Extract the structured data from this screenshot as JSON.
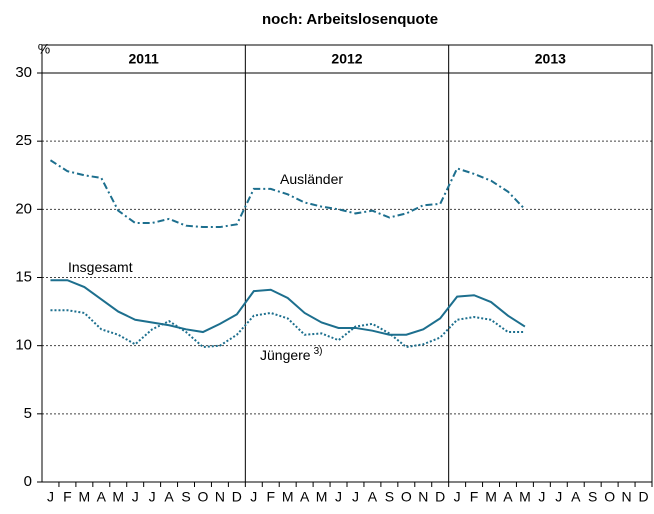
{
  "chart_data": {
    "type": "line",
    "title": "noch: Arbeitslosenquote",
    "ylabel": "%",
    "years": [
      "2011",
      "2012",
      "2013"
    ],
    "categories": [
      "J",
      "F",
      "M",
      "A",
      "M",
      "J",
      "J",
      "A",
      "S",
      "O",
      "N",
      "D",
      "J",
      "F",
      "M",
      "A",
      "M",
      "J",
      "J",
      "A",
      "S",
      "O",
      "N",
      "D",
      "J",
      "F",
      "M",
      "A",
      "M",
      "J",
      "J",
      "A",
      "S",
      "O",
      "N",
      "D"
    ],
    "ylim": [
      0,
      30
    ],
    "yticks": [
      0,
      5,
      10,
      15,
      20,
      25,
      30
    ],
    "grid": true,
    "series": [
      {
        "name": "Ausländer",
        "color": "#1d6f8e",
        "dash": "dashdot",
        "values": [
          23.6,
          22.8,
          22.5,
          22.3,
          19.9,
          19.0,
          19.0,
          19.3,
          18.8,
          18.7,
          18.7,
          18.9,
          21.5,
          21.5,
          21.1,
          20.5,
          20.2,
          20.0,
          19.7,
          19.9,
          19.4,
          19.7,
          20.3,
          20.4,
          23.0,
          22.6,
          22.1,
          21.3,
          20.0,
          null,
          null,
          null,
          null,
          null,
          null,
          null
        ]
      },
      {
        "name": "Insgesamt",
        "color": "#1d6f8e",
        "dash": "solid",
        "values": [
          14.8,
          14.8,
          14.3,
          13.4,
          12.5,
          11.9,
          11.7,
          11.5,
          11.2,
          11.0,
          11.6,
          12.3,
          14.0,
          14.1,
          13.5,
          12.4,
          11.7,
          11.3,
          11.3,
          11.1,
          10.8,
          10.8,
          11.2,
          12.0,
          13.6,
          13.7,
          13.2,
          12.2,
          11.4,
          null,
          null,
          null,
          null,
          null,
          null,
          null
        ]
      },
      {
        "name": "Jüngere",
        "footnote": "3)",
        "color": "#1d6f8e",
        "dash": "dotted",
        "values": [
          12.6,
          12.6,
          12.4,
          11.2,
          10.8,
          10.1,
          11.2,
          11.8,
          11.0,
          9.9,
          10.0,
          10.8,
          12.2,
          12.4,
          12.0,
          10.8,
          10.9,
          10.4,
          11.4,
          11.6,
          10.9,
          9.9,
          10.1,
          10.6,
          11.9,
          12.1,
          11.9,
          11.0,
          11.0,
          null,
          null,
          null,
          null,
          null,
          null,
          null
        ]
      }
    ]
  }
}
